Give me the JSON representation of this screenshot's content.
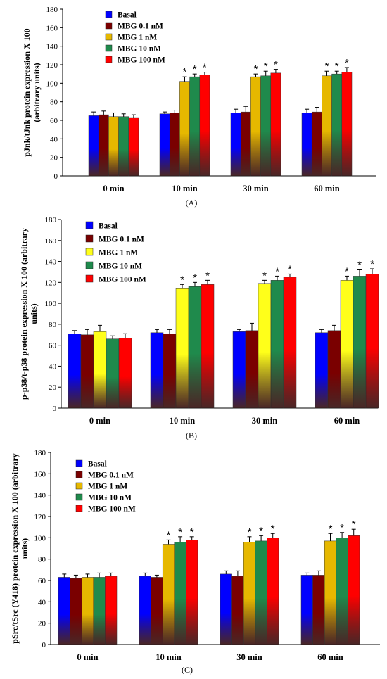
{
  "chart_data": [
    {
      "type": "bar",
      "panel_label": "(A)",
      "ylabel": [
        "pJnk/tJnk protein expression X 100",
        "(arbitrary units)"
      ],
      "ylim": [
        0,
        180
      ],
      "yticks": [
        0,
        20,
        40,
        60,
        80,
        100,
        120,
        140,
        160,
        180
      ],
      "categories": [
        "0 min",
        "10 min",
        "30 min",
        "60 min"
      ],
      "legend_position": "top-left",
      "series": [
        {
          "name": "Basal",
          "color": "#0000ff",
          "values": [
            65,
            67,
            68,
            68
          ],
          "errors": [
            4,
            2,
            4,
            4
          ],
          "stars": [
            false,
            false,
            false,
            false
          ]
        },
        {
          "name": "MBG 0.1 nM",
          "color": "#7a0000",
          "values": [
            66,
            68,
            69,
            69
          ],
          "errors": [
            4,
            3,
            6,
            5
          ],
          "stars": [
            false,
            false,
            false,
            false
          ]
        },
        {
          "name": "MBG 1 nM",
          "color": "#e6b800",
          "values": [
            64,
            102,
            107,
            108
          ],
          "errors": [
            4,
            5,
            3,
            5
          ],
          "stars": [
            false,
            true,
            true,
            true
          ]
        },
        {
          "name": "MBG 10 nM",
          "color": "#1f8a4c",
          "values": [
            64,
            107,
            108,
            110
          ],
          "errors": [
            3,
            3,
            5,
            3
          ],
          "stars": [
            false,
            true,
            true,
            true
          ]
        },
        {
          "name": "MBG 100 nM",
          "color": "#ff0000",
          "values": [
            63,
            109,
            111,
            112
          ],
          "errors": [
            3,
            3,
            4,
            5
          ],
          "stars": [
            false,
            true,
            true,
            true
          ]
        }
      ]
    },
    {
      "type": "bar",
      "panel_label": "(B)",
      "ylabel": [
        "p-p38/t-p38 protein expression X 100 (arbitrary",
        "units)"
      ],
      "ylim": [
        0,
        180
      ],
      "yticks": [
        0,
        20,
        40,
        60,
        80,
        100,
        120,
        140,
        160,
        180
      ],
      "categories": [
        "0 min",
        "10 min",
        "30 min",
        "60 min"
      ],
      "legend_position": "top-left",
      "series": [
        {
          "name": "Basal",
          "color": "#0000ff",
          "values": [
            71,
            72,
            73,
            72
          ],
          "errors": [
            3,
            3,
            2,
            3
          ],
          "stars": [
            false,
            false,
            false,
            false
          ]
        },
        {
          "name": "MBG 0.1 nM",
          "color": "#7a0000",
          "values": [
            70,
            71,
            74,
            74
          ],
          "errors": [
            5,
            4,
            7,
            5
          ],
          "stars": [
            false,
            false,
            false,
            false
          ]
        },
        {
          "name": "MBG 1 nM",
          "color": "#ffff1a",
          "values": [
            73,
            114,
            119,
            122
          ],
          "errors": [
            6,
            4,
            3,
            4
          ],
          "stars": [
            false,
            true,
            true,
            true
          ]
        },
        {
          "name": "MBG 10 nM",
          "color": "#1f8a4c",
          "values": [
            66,
            116,
            122,
            126
          ],
          "errors": [
            3,
            4,
            4,
            6
          ],
          "stars": [
            false,
            true,
            true,
            true
          ]
        },
        {
          "name": "MBG 100 nM",
          "color": "#ff0000",
          "values": [
            67,
            118,
            125,
            128
          ],
          "errors": [
            4,
            4,
            3,
            5
          ],
          "stars": [
            false,
            true,
            true,
            true
          ]
        }
      ]
    },
    {
      "type": "bar",
      "panel_label": "(C)",
      "ylabel": [
        "pSrc/tSrc (Y418) protein expression X 100 (arbitrary",
        "units)"
      ],
      "ylim": [
        0,
        180
      ],
      "yticks": [
        0,
        20,
        40,
        60,
        80,
        100,
        120,
        140,
        160,
        180
      ],
      "categories": [
        "0 min",
        "10 min",
        "30 min",
        "60 min"
      ],
      "legend_position": "top-left",
      "series": [
        {
          "name": "Basal",
          "color": "#0000ff",
          "values": [
            63,
            64,
            66,
            65
          ],
          "errors": [
            3,
            3,
            3,
            2
          ],
          "stars": [
            false,
            false,
            false,
            false
          ]
        },
        {
          "name": "MBG 0.1 nM",
          "color": "#7a0000",
          "values": [
            62,
            63,
            64,
            65
          ],
          "errors": [
            3,
            2,
            5,
            4
          ],
          "stars": [
            false,
            false,
            false,
            false
          ]
        },
        {
          "name": "MBG 1 nM",
          "color": "#e6b800",
          "values": [
            63,
            94,
            96,
            97
          ],
          "errors": [
            3,
            4,
            5,
            7
          ],
          "stars": [
            false,
            true,
            true,
            true
          ]
        },
        {
          "name": "MBG 10 nM",
          "color": "#1f8a4c",
          "values": [
            63,
            96,
            97,
            100
          ],
          "errors": [
            4,
            5,
            5,
            5
          ],
          "stars": [
            false,
            true,
            true,
            true
          ]
        },
        {
          "name": "MBG 100 nM",
          "color": "#ff0000",
          "values": [
            64,
            98,
            100,
            102
          ],
          "errors": [
            3,
            3,
            4,
            6
          ],
          "stars": [
            false,
            true,
            true,
            true
          ]
        }
      ]
    }
  ]
}
